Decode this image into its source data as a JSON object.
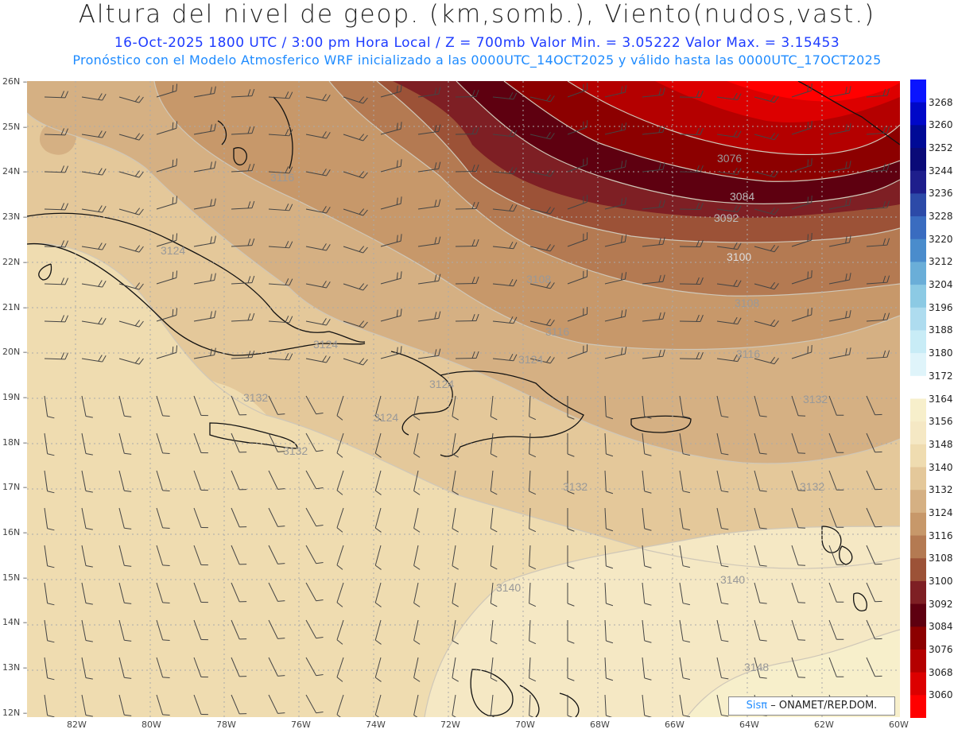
{
  "header": {
    "title": "Altura del nivel de geop. (km,somb.), Viento(nudos,vast.)",
    "line1": "16-Oct-2025   1800 UTC / 3:00 pm Hora Local / Z = 700mb     Valor Min. = 3.05222  Valor Max. = 3.15453",
    "line2": "Pronóstico con el Modelo Atmosferico WRF inicializado a las 0000UTC_14OCT2025 y válido hasta las  0000UTC_17OCT2025"
  },
  "credit": {
    "brand": "Sisπ",
    "text": "– ONAMET/REP.DOM."
  },
  "axes": {
    "lat_labels": [
      "26N",
      "25N",
      "24N",
      "23N",
      "22N",
      "21N",
      "20N",
      "19N",
      "18N",
      "17N",
      "16N",
      "15N",
      "14N",
      "13N",
      "12N"
    ],
    "lon_labels": [
      "82W",
      "80W",
      "78W",
      "76W",
      "74W",
      "72W",
      "70W",
      "68W",
      "66W",
      "64W",
      "62W",
      "60W"
    ]
  },
  "colorbar": {
    "labels": [
      "3268",
      "3260",
      "3252",
      "3244",
      "3236",
      "3228",
      "3220",
      "3212",
      "3204",
      "3196",
      "3188",
      "3180",
      "3172",
      "3164",
      "3156",
      "3148",
      "3140",
      "3132",
      "3124",
      "3116",
      "3108",
      "3100",
      "3092",
      "3084",
      "3076",
      "3068",
      "3060"
    ],
    "colors": [
      "#0a14ff",
      "#0008c8",
      "#000a96",
      "#0a0a78",
      "#1e1e8c",
      "#2c4aa8",
      "#3a6cc0",
      "#4a8ccc",
      "#6aaed8",
      "#8ccae4",
      "#aedcef",
      "#c8ecf6",
      "#dff4fa",
      "#ffffff",
      "#f7efcb",
      "#f5e8c4",
      "#efdcb0",
      "#e4c89a",
      "#d5b083",
      "#c7986a",
      "#b47a52",
      "#9c5237",
      "#7e1f24",
      "#5e0010",
      "#8c0000",
      "#b40000",
      "#dc0000",
      "#ff0000"
    ]
  },
  "contours": [
    {
      "label": "3076"
    },
    {
      "label": "3084"
    },
    {
      "label": "3092"
    },
    {
      "label": "3100"
    },
    {
      "label": "3108"
    },
    {
      "label": "3108"
    },
    {
      "label": "3116"
    },
    {
      "label": "3116"
    },
    {
      "label": "3116"
    },
    {
      "label": "3124"
    },
    {
      "label": "3124"
    },
    {
      "label": "3124"
    },
    {
      "label": "3132"
    },
    {
      "label": "3132"
    },
    {
      "label": "3132"
    },
    {
      "label": "3132"
    },
    {
      "label": "3132"
    },
    {
      "label": "3140"
    },
    {
      "label": "3140"
    },
    {
      "label": "3148"
    },
    {
      "label": "3124"
    },
    {
      "label": "3124"
    }
  ]
}
